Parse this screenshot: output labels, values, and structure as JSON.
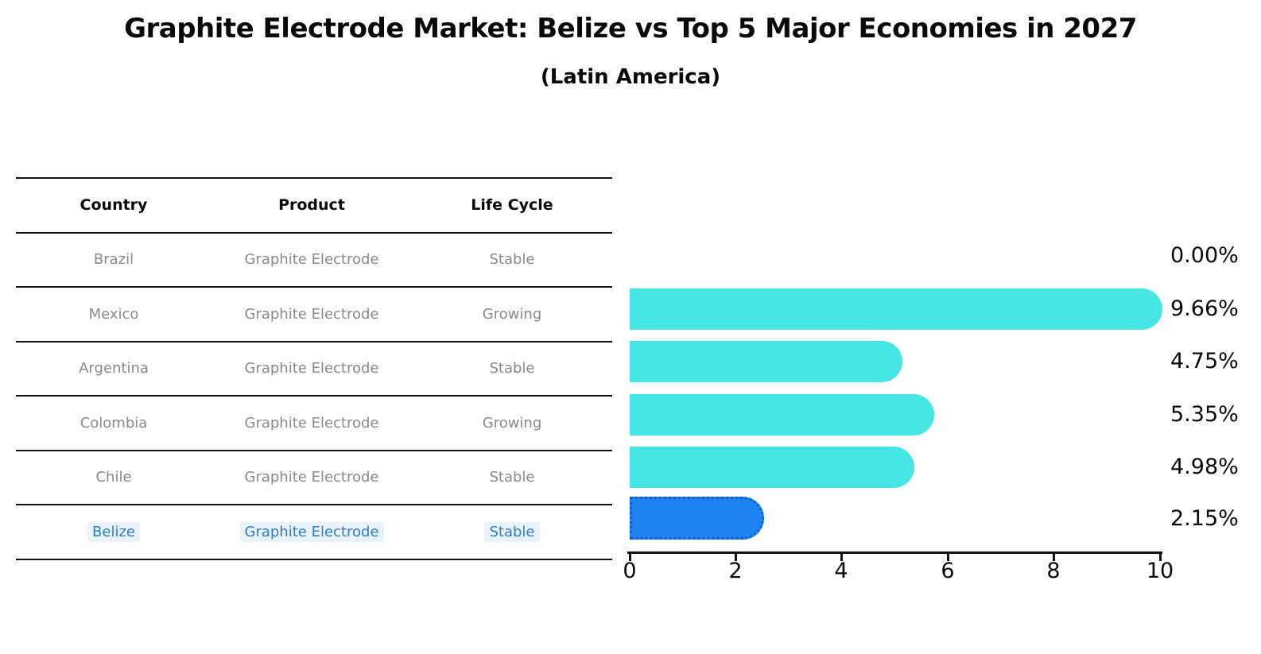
{
  "title": "Graphite Electrode Market: Belize vs Top 5 Major Economies in 2027",
  "subtitle": "(Latin America)",
  "table": {
    "headers": [
      "Country",
      "Product",
      "Life Cycle"
    ],
    "rows": [
      {
        "country": "Brazil",
        "product": "Graphite Electrode",
        "life_cycle": "Stable"
      },
      {
        "country": "Mexico",
        "product": "Graphite Electrode",
        "life_cycle": "Growing"
      },
      {
        "country": "Argentina",
        "product": "Graphite Electrode",
        "life_cycle": "Stable"
      },
      {
        "country": "Colombia",
        "product": "Graphite Electrode",
        "life_cycle": "Growing"
      },
      {
        "country": "Chile",
        "product": "Graphite Electrode",
        "life_cycle": "Stable"
      },
      {
        "country": "Belize",
        "product": "Graphite Electrode",
        "life_cycle": "Stable"
      }
    ]
  },
  "chart_data": {
    "type": "bar",
    "orientation": "horizontal",
    "title": "Graphite Electrode Market: Belize vs Top 5 Major Economies in 2027",
    "subtitle": "(Latin America)",
    "categories": [
      "Brazil",
      "Mexico",
      "Argentina",
      "Colombia",
      "Chile",
      "Belize"
    ],
    "values": [
      0.0,
      9.66,
      4.75,
      5.35,
      4.98,
      2.15
    ],
    "value_labels": [
      "0.00%",
      "9.66%",
      "4.75%",
      "5.35%",
      "4.98%",
      "2.15%"
    ],
    "xlabel": "",
    "ylabel": "",
    "xlim": [
      0,
      10
    ],
    "xticks": [
      "0",
      "2",
      "4",
      "6",
      "8",
      "10"
    ],
    "grid": false,
    "legend": "none",
    "bar_color": "#47e5e3",
    "highlight_index": 5,
    "highlight_bar_color": "#1e82f0",
    "highlight_border_color": "#0b5fd6",
    "highlight_text_color": "#2b7cc9",
    "table_text_color": "#8a8a8a",
    "axis_color": "#111111"
  }
}
